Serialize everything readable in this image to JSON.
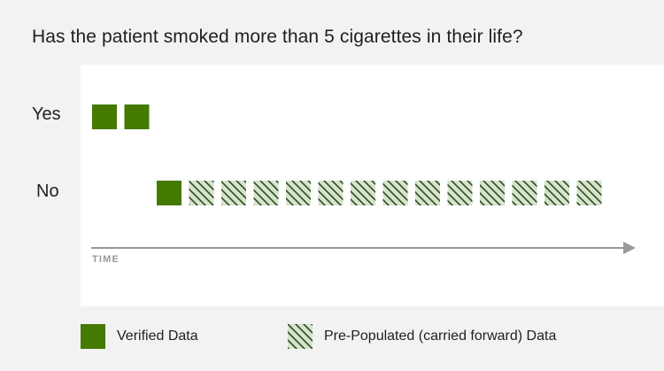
{
  "title": "Has the patient smoked more than 5 cigarettes in their life?",
  "colors": {
    "verified": "#447a00",
    "prepopulated_fill": "#d6e3cc",
    "prepopulated_stripe": "#2f4a1e",
    "axis": "#999999"
  },
  "chart_data": {
    "type": "scatter",
    "title": "Has the patient smoked more than 5 cigarettes in their life?",
    "xlabel": "TIME",
    "categories": [
      "Yes",
      "No"
    ],
    "series": [
      {
        "name": "Verified Data",
        "points": [
          {
            "x": 1,
            "category": "Yes"
          },
          {
            "x": 2,
            "category": "Yes"
          },
          {
            "x": 3,
            "category": "No"
          }
        ]
      },
      {
        "name": "Pre-Populated (carried forward) Data",
        "points": [
          {
            "x": 4,
            "category": "No"
          },
          {
            "x": 5,
            "category": "No"
          },
          {
            "x": 6,
            "category": "No"
          },
          {
            "x": 7,
            "category": "No"
          },
          {
            "x": 8,
            "category": "No"
          },
          {
            "x": 9,
            "category": "No"
          },
          {
            "x": 10,
            "category": "No"
          },
          {
            "x": 11,
            "category": "No"
          },
          {
            "x": 12,
            "category": "No"
          },
          {
            "x": 13,
            "category": "No"
          },
          {
            "x": 14,
            "category": "No"
          },
          {
            "x": 15,
            "category": "No"
          },
          {
            "x": 16,
            "category": "No"
          }
        ]
      }
    ],
    "legend": {
      "placement": "bottom",
      "entries": [
        "Verified Data",
        "Pre-Populated (carried forward) Data"
      ]
    },
    "grid": false
  }
}
